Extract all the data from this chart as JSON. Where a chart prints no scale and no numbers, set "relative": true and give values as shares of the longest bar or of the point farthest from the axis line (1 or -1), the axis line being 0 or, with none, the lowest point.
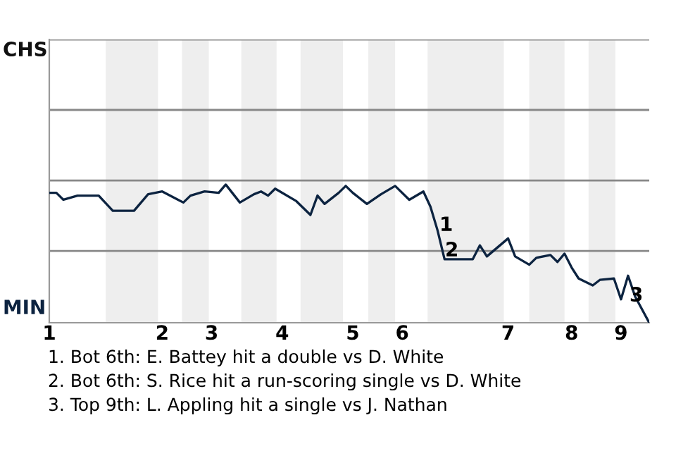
{
  "chart_data": {
    "type": "line",
    "relative": true,
    "categories": [
      "1",
      null,
      null,
      null,
      null,
      null,
      null,
      null,
      null,
      null,
      null,
      null,
      null,
      null,
      null,
      null,
      "2",
      null,
      null,
      null,
      null,
      null,
      null,
      "3",
      null,
      null,
      null,
      null,
      null,
      null,
      null,
      null,
      null,
      "4",
      null,
      null,
      null,
      null,
      null,
      null,
      null,
      null,
      null,
      "5",
      null,
      null,
      null,
      null,
      null,
      null,
      "6",
      null,
      null,
      null,
      null,
      null,
      null,
      null,
      null,
      null,
      null,
      null,
      null,
      null,
      null,
      "7",
      null,
      null,
      null,
      null,
      null,
      null,
      null,
      null,
      "8",
      null,
      null,
      null,
      null,
      null,
      null,
      "9",
      null,
      null,
      null,
      null
    ],
    "series": [
      {
        "color": "#0c2340",
        "values": [
          0.94,
          0.94,
          0.89,
          null,
          0.92,
          null,
          null,
          0.92,
          null,
          0.81,
          null,
          null,
          0.81,
          null,
          0.93,
          null,
          0.95,
          null,
          null,
          0.87,
          0.92,
          null,
          0.95,
          null,
          0.94,
          1.0,
          null,
          0.87,
          null,
          0.93,
          0.95,
          0.92,
          0.97,
          null,
          null,
          0.88,
          null,
          0.78,
          0.92,
          0.86,
          null,
          0.94,
          0.99,
          0.94,
          null,
          0.86,
          null,
          0.93,
          null,
          0.99,
          null,
          0.89,
          null,
          0.95,
          0.84,
          0.67,
          0.46,
          null,
          null,
          null,
          0.46,
          0.56,
          0.48,
          null,
          null,
          0.61,
          0.48,
          null,
          0.42,
          0.47,
          null,
          0.49,
          0.44,
          0.5,
          0.4,
          0.32,
          null,
          0.27,
          0.31,
          null,
          0.32,
          0.17,
          0.34,
          0.19,
          null,
          0
        ]
      }
    ],
    "ref_lines": [
      {
        "axis": "y",
        "value": 0.52,
        "color": "#888888"
      },
      {
        "axis": "y",
        "value": 1.03,
        "color": "#888888"
      },
      {
        "axis": "y",
        "value": 1.54,
        "color": "#888888"
      },
      {
        "axis": "y",
        "value": 2.05,
        "color": "#888888"
      }
    ],
    "marker": "none",
    "line_style": "solid",
    "annotations": [
      "CHS",
      "MIN",
      "1",
      "2",
      "3",
      "1. Bot 6th: E. Battey hit a double vs D. White",
      "2. Bot 6th: S. Rice hit a run-scoring single vs D. White",
      "3. Top 9th: L. Appling hit a single vs J. Nathan"
    ]
  }
}
